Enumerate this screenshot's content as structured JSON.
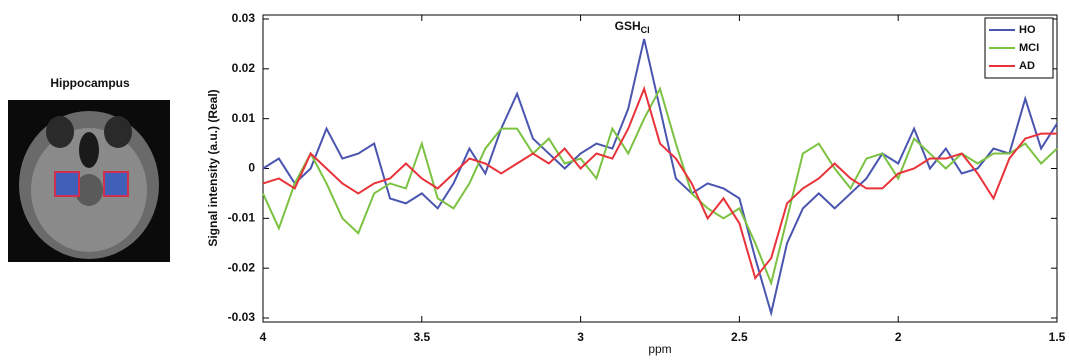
{
  "image": {
    "label": "Hippocampus"
  },
  "chart_data": {
    "type": "line",
    "y_label": "Signal intensity (a.u.) (Real)",
    "x_label": "ppm",
    "annotation": {
      "text": "GSH",
      "sub": "Cl",
      "x": 2.8
    },
    "x": [
      4,
      3.95,
      3.9,
      3.85,
      3.8,
      3.75,
      3.7,
      3.65,
      3.6,
      3.55,
      3.5,
      3.45,
      3.4,
      3.35,
      3.3,
      3.25,
      3.2,
      3.15,
      3.1,
      3.05,
      3,
      2.95,
      2.9,
      2.85,
      2.8,
      2.75,
      2.7,
      2.65,
      2.6,
      2.55,
      2.5,
      2.45,
      2.4,
      2.35,
      2.3,
      2.25,
      2.2,
      2.15,
      2.1,
      2.05,
      2,
      1.95,
      1.9,
      1.85,
      1.8,
      1.75,
      1.7,
      1.65,
      1.6,
      1.55,
      1.5
    ],
    "series": [
      {
        "name": "HO",
        "color": "#4a55b0",
        "values": [
          0,
          0.002,
          -0.003,
          0,
          0.008,
          0.002,
          0.003,
          0.005,
          -0.006,
          -0.007,
          -0.005,
          -0.008,
          -0.003,
          0.004,
          -0.001,
          0.008,
          0.015,
          0.006,
          0.003,
          0,
          0.003,
          0.005,
          0.004,
          0.012,
          0.026,
          0.012,
          -0.002,
          -0.005,
          -0.003,
          -0.004,
          -0.006,
          -0.018,
          -0.029,
          -0.015,
          -0.008,
          -0.005,
          -0.008,
          -0.005,
          -0.002,
          0.003,
          0.001,
          0.008,
          0,
          0.004,
          -0.001,
          0,
          0.004,
          0.003,
          0.014,
          0.004,
          0.009
        ]
      },
      {
        "name": "MCI",
        "color": "#7cc242",
        "values": [
          -0.005,
          -0.012,
          -0.003,
          0.003,
          -0.003,
          -0.01,
          -0.013,
          -0.005,
          -0.003,
          -0.004,
          0.005,
          -0.006,
          -0.008,
          -0.003,
          0.004,
          0.008,
          0.008,
          0.003,
          0.006,
          0.001,
          0.002,
          -0.002,
          0.008,
          0.003,
          0.01,
          0.016,
          0.005,
          -0.005,
          -0.008,
          -0.01,
          -0.008,
          -0.015,
          -0.023,
          -0.01,
          0.003,
          0.005,
          0,
          -0.004,
          0.002,
          0.003,
          -0.002,
          0.006,
          0.003,
          0,
          0.003,
          0.001,
          0.003,
          0.003,
          0.005,
          0.001,
          0.004
        ]
      },
      {
        "name": "AD",
        "color": "#e8333a",
        "values": [
          -0.003,
          -0.002,
          -0.004,
          0.003,
          0,
          -0.003,
          -0.005,
          -0.003,
          -0.002,
          0.001,
          -0.002,
          -0.004,
          -0.001,
          0.002,
          0.001,
          -0.001,
          0.001,
          0.003,
          0.001,
          0.004,
          0,
          0.003,
          0.002,
          0.008,
          0.016,
          0.005,
          0.002,
          -0.003,
          -0.01,
          -0.006,
          -0.011,
          -0.022,
          -0.018,
          -0.007,
          -0.004,
          -0.002,
          0.001,
          -0.002,
          -0.004,
          -0.004,
          -0.001,
          0,
          0.002,
          0.002,
          0.003,
          -0.001,
          -0.006,
          0.002,
          0.006,
          0.007,
          0.007
        ]
      }
    ],
    "xlim": [
      4,
      1.5
    ],
    "xticks": [
      4,
      3.5,
      3,
      2.5,
      2,
      1.5
    ],
    "ylim": [
      -0.0308,
      0.0308
    ],
    "yticks": [
      -0.03,
      -0.02,
      -0.01,
      0,
      0.01,
      0.02,
      0.03
    ],
    "grid": false,
    "legend": "upper right"
  }
}
